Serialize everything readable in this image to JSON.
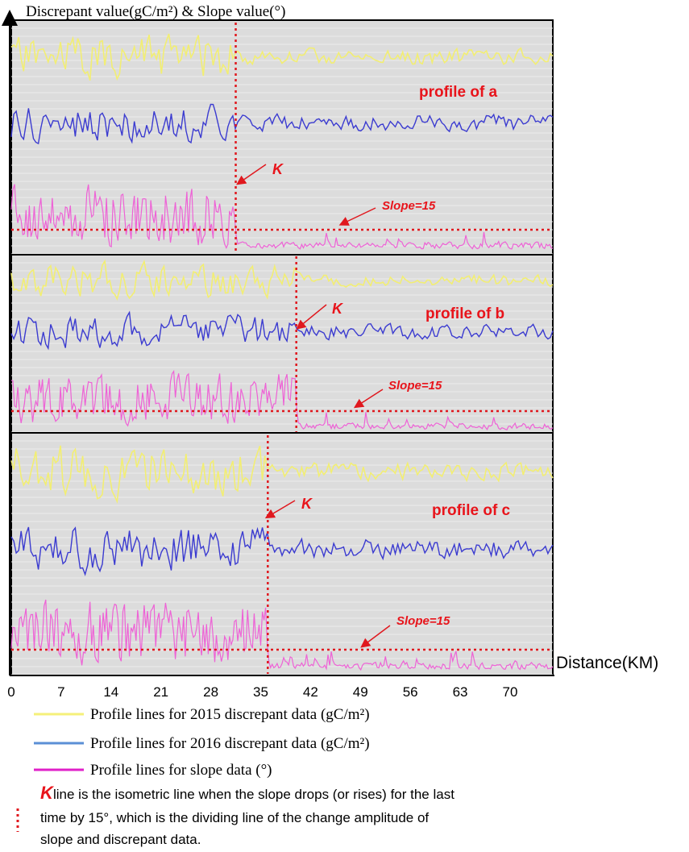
{
  "chart_data": {
    "type": "line",
    "title": "",
    "ylabel": "Discrepant value(gC/m²) & Slope value(°)",
    "xlabel": "Distance(KM)",
    "x_ticks": [
      "0",
      "7",
      "14",
      "21",
      "28",
      "35",
      "42",
      "49",
      "56",
      "63",
      "70"
    ],
    "xlim": [
      0,
      76
    ],
    "grid": true,
    "legend": [
      {
        "label": "Profile lines for 2015 discrepant data (gC/m²)",
        "color": "#f5f07a"
      },
      {
        "label": "Profile lines for 2016 discrepant data (gC/m²)",
        "color": "#5b8fd6"
      },
      {
        "label": "Profile lines for slope data (°)",
        "color": "#e020c8"
      }
    ],
    "panels": [
      {
        "label": "profile of a",
        "k_x": 31.5,
        "k_label": "K",
        "slope_label": "Slope=15",
        "seed": 11
      },
      {
        "label": "profile of b",
        "k_x": 40,
        "k_label": "K",
        "slope_label": "Slope=15",
        "seed": 29
      },
      {
        "label": "profile of c",
        "k_x": 36,
        "k_label": "K",
        "slope_label": "Slope=15",
        "seed": 47
      }
    ],
    "series_colors": {
      "y2015": "#f2ee73",
      "y2016": "#3b3bd0",
      "slope": "#ee62d6",
      "k_line": "#e0181e",
      "panel_bg": "#dcdcdc"
    }
  },
  "note": {
    "k_symbol": "K",
    "line1": " line is the isometric line when the slope drops (or rises) for the last",
    "line2": "time by 15°, which is the dividing line of the change amplitude of",
    "line3": "slope and discrepant data."
  }
}
